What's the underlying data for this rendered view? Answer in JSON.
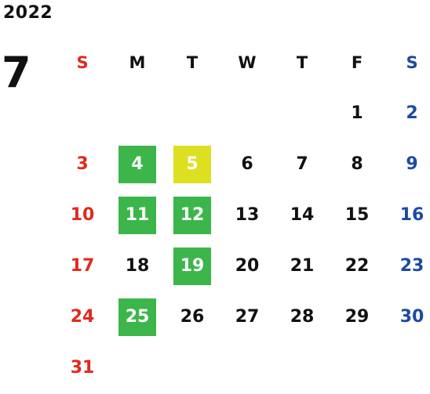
{
  "calendar": {
    "year": "2022",
    "month": "7",
    "weekdays": [
      "S",
      "M",
      "T",
      "W",
      "T",
      "F",
      "S"
    ],
    "weeks": [
      [
        "",
        "",
        "",
        "",
        "",
        "1",
        "2"
      ],
      [
        "3",
        "4",
        "5",
        "6",
        "7",
        "8",
        "9"
      ],
      [
        "10",
        "11",
        "12",
        "13",
        "14",
        "15",
        "16"
      ],
      [
        "17",
        "18",
        "19",
        "20",
        "21",
        "22",
        "23"
      ],
      [
        "24",
        "25",
        "26",
        "27",
        "28",
        "29",
        "30"
      ],
      [
        "31",
        "",
        "",
        "",
        "",
        "",
        ""
      ]
    ],
    "highlights": {
      "4": "green",
      "5": "yellow",
      "11": "green",
      "12": "green",
      "19": "green",
      "25": "green"
    },
    "colors": {
      "sunday": "#e02a1d",
      "saturday": "#1c4aa3",
      "default": "#111111",
      "highlight_green": "#3cb64b",
      "highlight_yellow": "#dde021",
      "highlight_text": "#ffffff"
    }
  }
}
